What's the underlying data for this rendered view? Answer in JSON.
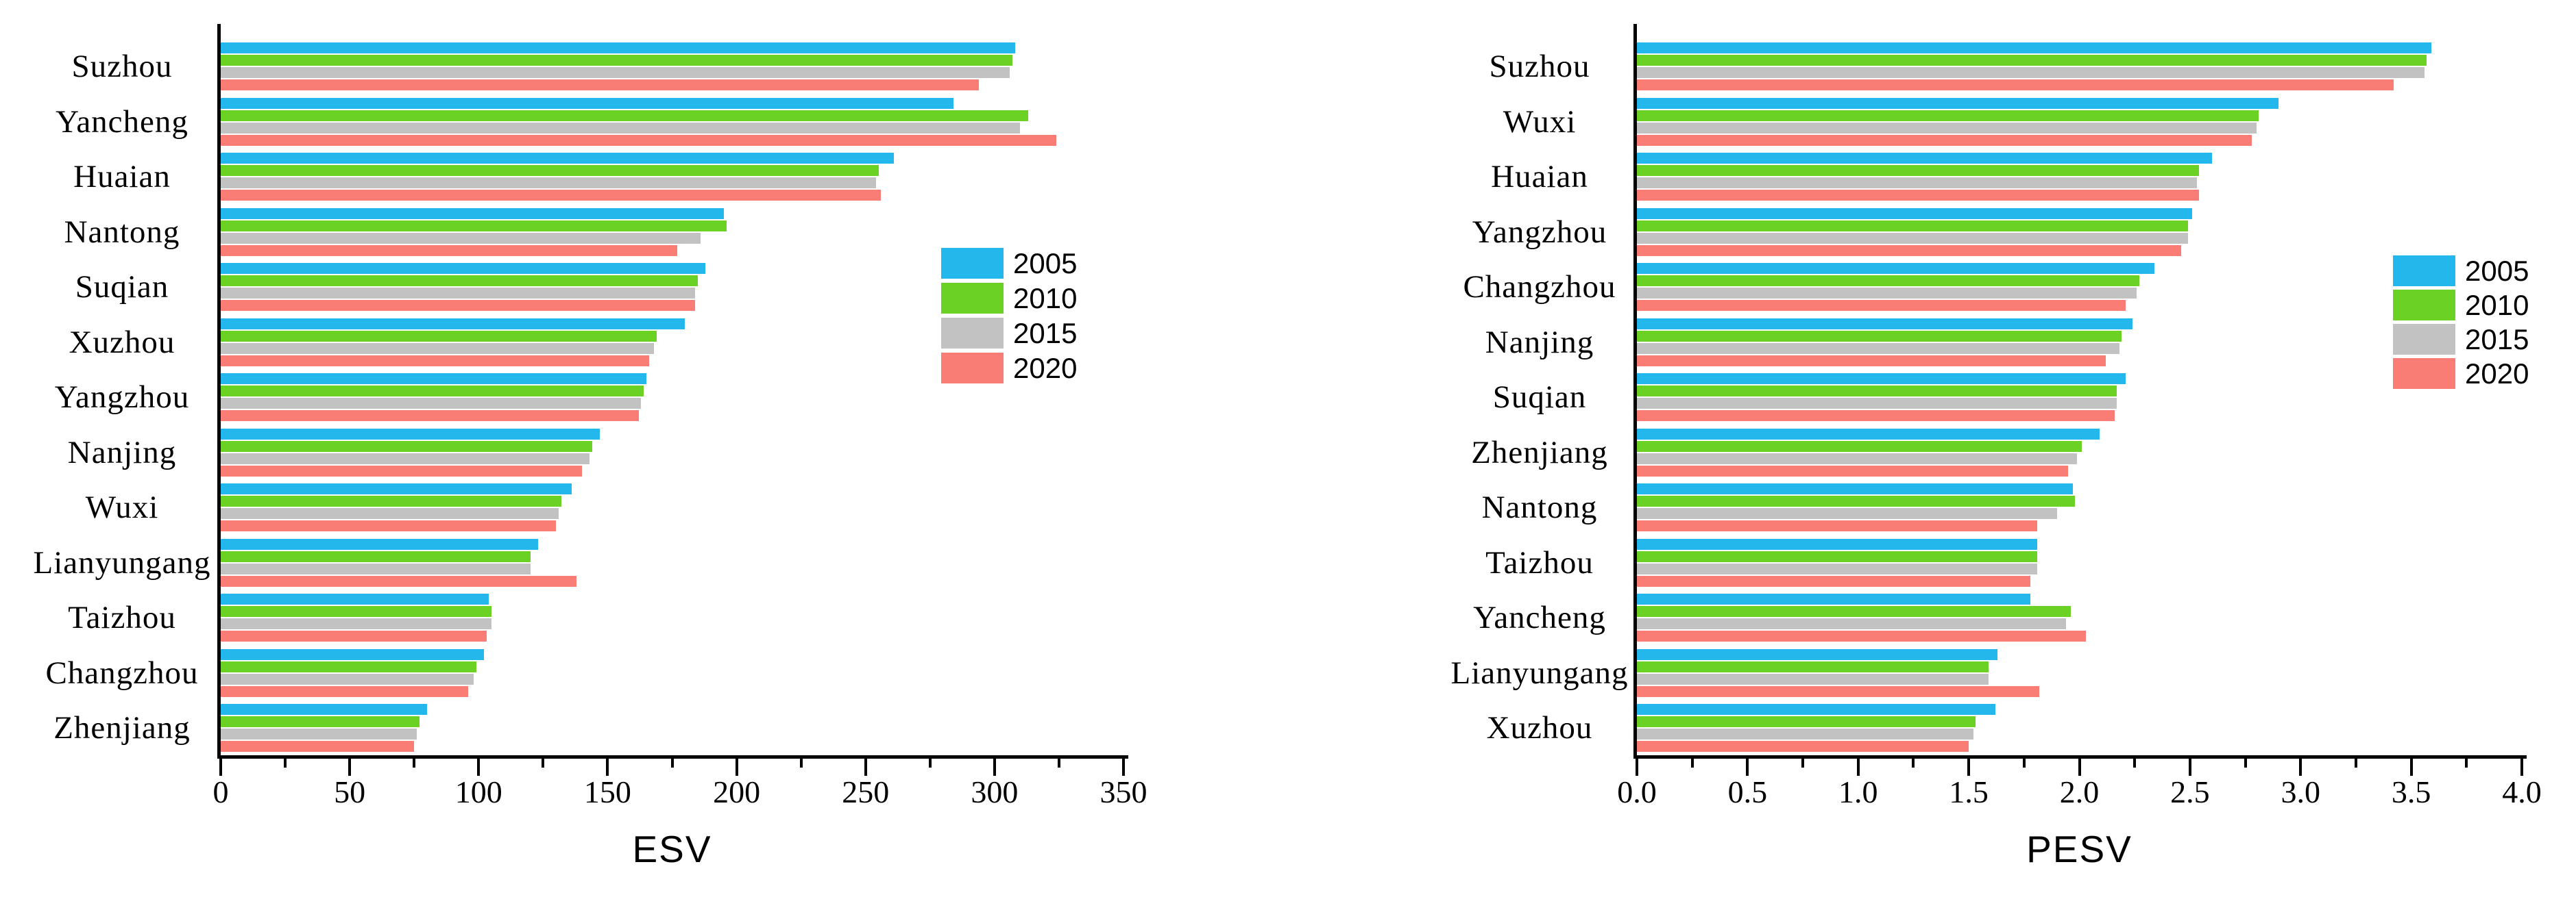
{
  "figure": {
    "background": "#FFFFFF"
  },
  "legend": {
    "items": [
      {
        "label": "2005",
        "color": "#23B7EB"
      },
      {
        "label": "2010",
        "color": "#6CD125"
      },
      {
        "label": "2015",
        "color": "#C2C2C2"
      },
      {
        "label": "2020",
        "color": "#F97D75"
      }
    ]
  },
  "chart_data": [
    {
      "type": "bar",
      "orientation": "horizontal",
      "title": "",
      "xlabel": "ESV",
      "ylabel": "",
      "xlim": [
        0,
        350
      ],
      "xtick_labels": [
        "0",
        "50",
        "100",
        "150",
        "200",
        "250",
        "300",
        "350"
      ],
      "minor_ticks_between_majors": true,
      "grid": false,
      "legend_position": "inside-right",
      "legend_entries": [
        "2005",
        "2010",
        "2015",
        "2020"
      ],
      "categories": [
        "Suzhou",
        "Yancheng",
        "Huaian",
        "Nantong",
        "Suqian",
        "Xuzhou",
        "Yangzhou",
        "Nanjing",
        "Wuxi",
        "Lianyungang",
        "Taizhou",
        "Changzhou",
        "Zhenjiang"
      ],
      "series": [
        {
          "name": "2005",
          "color": "#23B7EB",
          "values": [
            308,
            284,
            261,
            195,
            188,
            180,
            165,
            147,
            136,
            123,
            104,
            102,
            80
          ]
        },
        {
          "name": "2010",
          "color": "#6CD125",
          "values": [
            307,
            313,
            255,
            196,
            185,
            169,
            164,
            144,
            132,
            120,
            105,
            99,
            77
          ]
        },
        {
          "name": "2015",
          "color": "#C2C2C2",
          "values": [
            306,
            310,
            254,
            186,
            184,
            168,
            163,
            143,
            131,
            120,
            105,
            98,
            76
          ]
        },
        {
          "name": "2020",
          "color": "#F97D75",
          "values": [
            294,
            324,
            256,
            177,
            184,
            166,
            162,
            140,
            130,
            138,
            103,
            96,
            75
          ]
        }
      ]
    },
    {
      "type": "bar",
      "orientation": "horizontal",
      "title": "",
      "xlabel": "PESV",
      "ylabel": "",
      "xlim": [
        0,
        4.0
      ],
      "xtick_labels": [
        "0.0",
        "0.5",
        "1.0",
        "1.5",
        "2.0",
        "2.5",
        "3.0",
        "3.5",
        "4.0"
      ],
      "minor_ticks_between_majors": true,
      "grid": false,
      "legend_position": "inside-right",
      "legend_entries": [
        "2005",
        "2010",
        "2015",
        "2020"
      ],
      "categories": [
        "Suzhou",
        "Wuxi",
        "Huaian",
        "Yangzhou",
        "Changzhou",
        "Nanjing",
        "Suqian",
        "Zhenjiang",
        "Nantong",
        "Taizhou",
        "Yancheng",
        "Lianyungang",
        "Xuzhou"
      ],
      "series": [
        {
          "name": "2005",
          "color": "#23B7EB",
          "values": [
            3.59,
            2.9,
            2.6,
            2.51,
            2.34,
            2.24,
            2.21,
            2.09,
            1.97,
            1.81,
            1.78,
            1.63,
            1.62
          ]
        },
        {
          "name": "2010",
          "color": "#6CD125",
          "values": [
            3.57,
            2.81,
            2.54,
            2.49,
            2.27,
            2.19,
            2.17,
            2.01,
            1.98,
            1.81,
            1.96,
            1.59,
            1.53
          ]
        },
        {
          "name": "2015",
          "color": "#C2C2C2",
          "values": [
            3.56,
            2.8,
            2.53,
            2.49,
            2.26,
            2.18,
            2.17,
            1.99,
            1.9,
            1.81,
            1.94,
            1.59,
            1.52
          ]
        },
        {
          "name": "2020",
          "color": "#F97D75",
          "values": [
            3.42,
            2.78,
            2.54,
            2.46,
            2.21,
            2.12,
            2.16,
            1.95,
            1.81,
            1.78,
            2.03,
            1.82,
            1.5
          ]
        }
      ]
    }
  ]
}
